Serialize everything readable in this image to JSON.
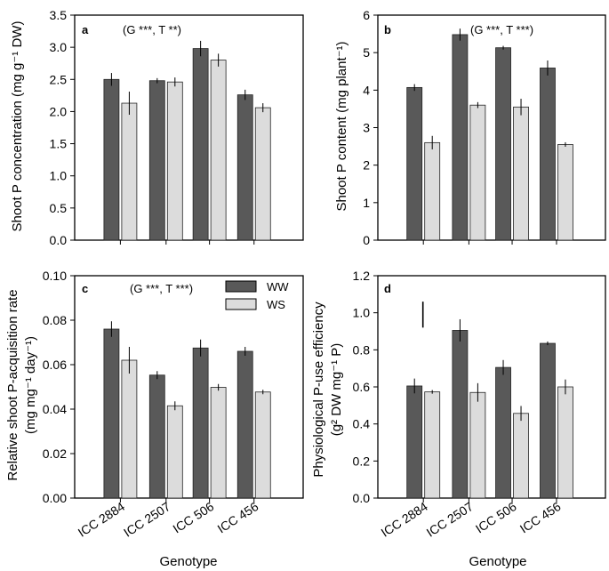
{
  "colors": {
    "ww": "#595959",
    "ws": "#dcdcdc",
    "axis": "#000000",
    "errorbar": "#000000"
  },
  "xlabel": "Genotype",
  "chart_data": [
    {
      "type": "bar",
      "panel": "a",
      "annotation": "(G ***, T **)",
      "ylabel": "Shoot P concentration (mg g⁻¹ DW)",
      "ylim": [
        0,
        3.5
      ],
      "yticks": [
        "0.0",
        "0.5",
        "1.0",
        "1.5",
        "2.0",
        "2.5",
        "3.0",
        "3.5"
      ],
      "categories": [
        "ICC 2884",
        "ICC 2507",
        "ICC 506",
        "ICC 456"
      ],
      "show_xticklabels": false,
      "series": [
        {
          "name": "WW",
          "values": [
            2.5,
            2.48,
            2.98,
            2.26
          ],
          "errors": [
            0.1,
            0.04,
            0.12,
            0.08
          ]
        },
        {
          "name": "WS",
          "values": [
            2.13,
            2.46,
            2.8,
            2.06
          ],
          "errors": [
            0.18,
            0.07,
            0.1,
            0.07
          ]
        }
      ]
    },
    {
      "type": "bar",
      "panel": "b",
      "annotation": "(G ***, T ***)",
      "ylabel": "Shoot P content (mg plant⁻¹)",
      "ylim": [
        0,
        6
      ],
      "yticks": [
        "0",
        "1",
        "2",
        "3",
        "4",
        "5",
        "6"
      ],
      "categories": [
        "ICC 2884",
        "ICC 2507",
        "ICC 506",
        "ICC 456"
      ],
      "show_xticklabels": false,
      "series": [
        {
          "name": "WW",
          "values": [
            4.07,
            5.48,
            5.13,
            4.59
          ],
          "errors": [
            0.09,
            0.16,
            0.05,
            0.2
          ]
        },
        {
          "name": "WS",
          "values": [
            2.6,
            3.6,
            3.55,
            2.55
          ],
          "errors": [
            0.18,
            0.08,
            0.22,
            0.06
          ]
        }
      ]
    },
    {
      "type": "bar",
      "panel": "c",
      "annotation": "(G ***, T ***)",
      "ylabel": "Relative shoot P-acquisition rate",
      "ylabel2": "(mg mg⁻¹ day⁻¹)",
      "ylim": [
        0,
        0.1
      ],
      "yticks": [
        "0.00",
        "0.02",
        "0.04",
        "0.06",
        "0.08",
        "0.10"
      ],
      "categories": [
        "ICC 2884",
        "ICC 2507",
        "ICC 506",
        "ICC 456"
      ],
      "show_xticklabels": true,
      "legend": [
        "WW",
        "WS"
      ],
      "series": [
        {
          "name": "WW",
          "values": [
            0.076,
            0.0553,
            0.0675,
            0.066
          ],
          "errors": [
            0.0035,
            0.0018,
            0.0038,
            0.002
          ]
        },
        {
          "name": "WS",
          "values": [
            0.062,
            0.0415,
            0.0498,
            0.0477
          ],
          "errors": [
            0.006,
            0.002,
            0.0015,
            0.001
          ]
        }
      ]
    },
    {
      "type": "bar",
      "panel": "d",
      "annotation": "",
      "ylabel": "Physiological P-use efficiency",
      "ylabel2": "(g² DW mg⁻¹ P)",
      "ylim": [
        0,
        1.2
      ],
      "yticks": [
        "0.0",
        "0.2",
        "0.4",
        "0.6",
        "0.8",
        "1.0",
        "1.2"
      ],
      "categories": [
        "ICC 2884",
        "ICC 2507",
        "ICC 506",
        "ICC 456"
      ],
      "show_xticklabels": true,
      "lsd_bar": {
        "value_top": 1.06,
        "value_bottom": 0.92
      },
      "series": [
        {
          "name": "WW",
          "values": [
            0.605,
            0.905,
            0.705,
            0.835
          ],
          "errors": [
            0.04,
            0.06,
            0.04,
            0.01
          ]
        },
        {
          "name": "WS",
          "values": [
            0.573,
            0.57,
            0.457,
            0.6
          ],
          "errors": [
            0.01,
            0.05,
            0.04,
            0.04
          ]
        }
      ]
    }
  ]
}
